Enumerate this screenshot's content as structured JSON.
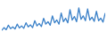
{
  "chart_data": {
    "type": "line",
    "categories": [
      null,
      null,
      null,
      null,
      null,
      null,
      null,
      null,
      null,
      null,
      null,
      null,
      null,
      null,
      null,
      null,
      null,
      null,
      null,
      null,
      null,
      null,
      null,
      null,
      null,
      null,
      null,
      null,
      null,
      null,
      null,
      null,
      null,
      null,
      null,
      null,
      null,
      null,
      null,
      null,
      null,
      null,
      null,
      null,
      null,
      null,
      null,
      null
    ],
    "values": [
      20,
      28,
      22,
      35,
      25,
      30,
      24,
      38,
      27,
      33,
      26,
      42,
      30,
      36,
      28,
      48,
      33,
      40,
      31,
      55,
      38,
      45,
      35,
      62,
      42,
      50,
      38,
      70,
      45,
      55,
      42,
      80,
      50,
      60,
      45,
      85,
      52,
      62,
      48,
      82,
      50,
      58,
      46,
      75,
      48,
      55,
      44,
      70
    ],
    "color": "#3a80c8",
    "ylim": [
      0,
      100
    ],
    "grid": false,
    "tick_labels": false
  }
}
